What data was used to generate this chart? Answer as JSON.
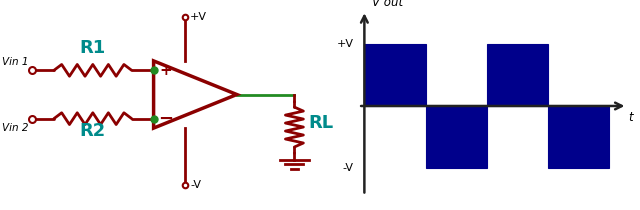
{
  "fig_width": 6.4,
  "fig_height": 2.1,
  "dpi": 100,
  "bg_color": "#ffffff",
  "circuit": {
    "dark_red": "#8B0000",
    "teal": "#008B8B",
    "green": "#228B22",
    "lw": 2.0
  },
  "waveform": {
    "axis_color": "#222222",
    "fill_color": "#00008B",
    "fill_edge_color": "#00008B",
    "x_label": "t",
    "y_label": "V out",
    "plus_v_label": "+V",
    "minus_v_label": "-V"
  }
}
